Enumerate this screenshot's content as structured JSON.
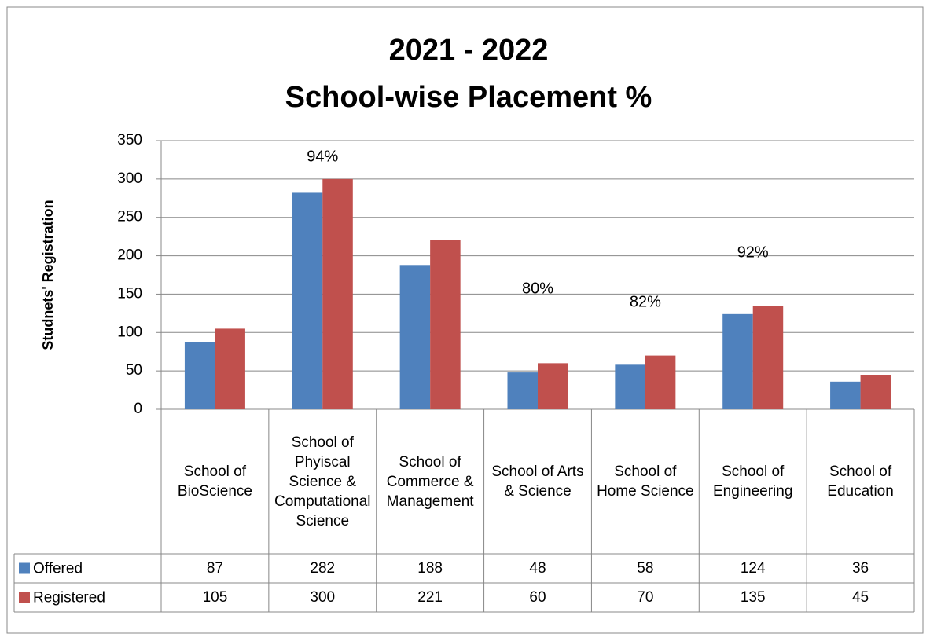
{
  "chart_data": {
    "type": "bar",
    "title": "2021 - 2022",
    "subtitle": "School-wise Placement %",
    "y_label": "Studnets' Registration",
    "categories": [
      "School of BioScience",
      "School of Phyiscal Science & Computational Science",
      "School of Commerce & Management",
      "School of Arts & Science",
      "School of Home Science",
      "School of Engineering",
      "School of Education"
    ],
    "series": [
      {
        "name": "Offered",
        "color": "#4f81bd",
        "values": [
          87,
          282,
          188,
          48,
          58,
          124,
          36
        ]
      },
      {
        "name": "Registered",
        "color": "#c0504d",
        "values": [
          105,
          300,
          221,
          60,
          70,
          135,
          45
        ]
      }
    ],
    "annotations": [
      "94%",
      "80%",
      "82%",
      "92%"
    ],
    "ylim": [
      0,
      350
    ],
    "yticks": [
      0,
      50,
      100,
      150,
      200,
      250,
      300,
      350
    ],
    "grid": true
  }
}
